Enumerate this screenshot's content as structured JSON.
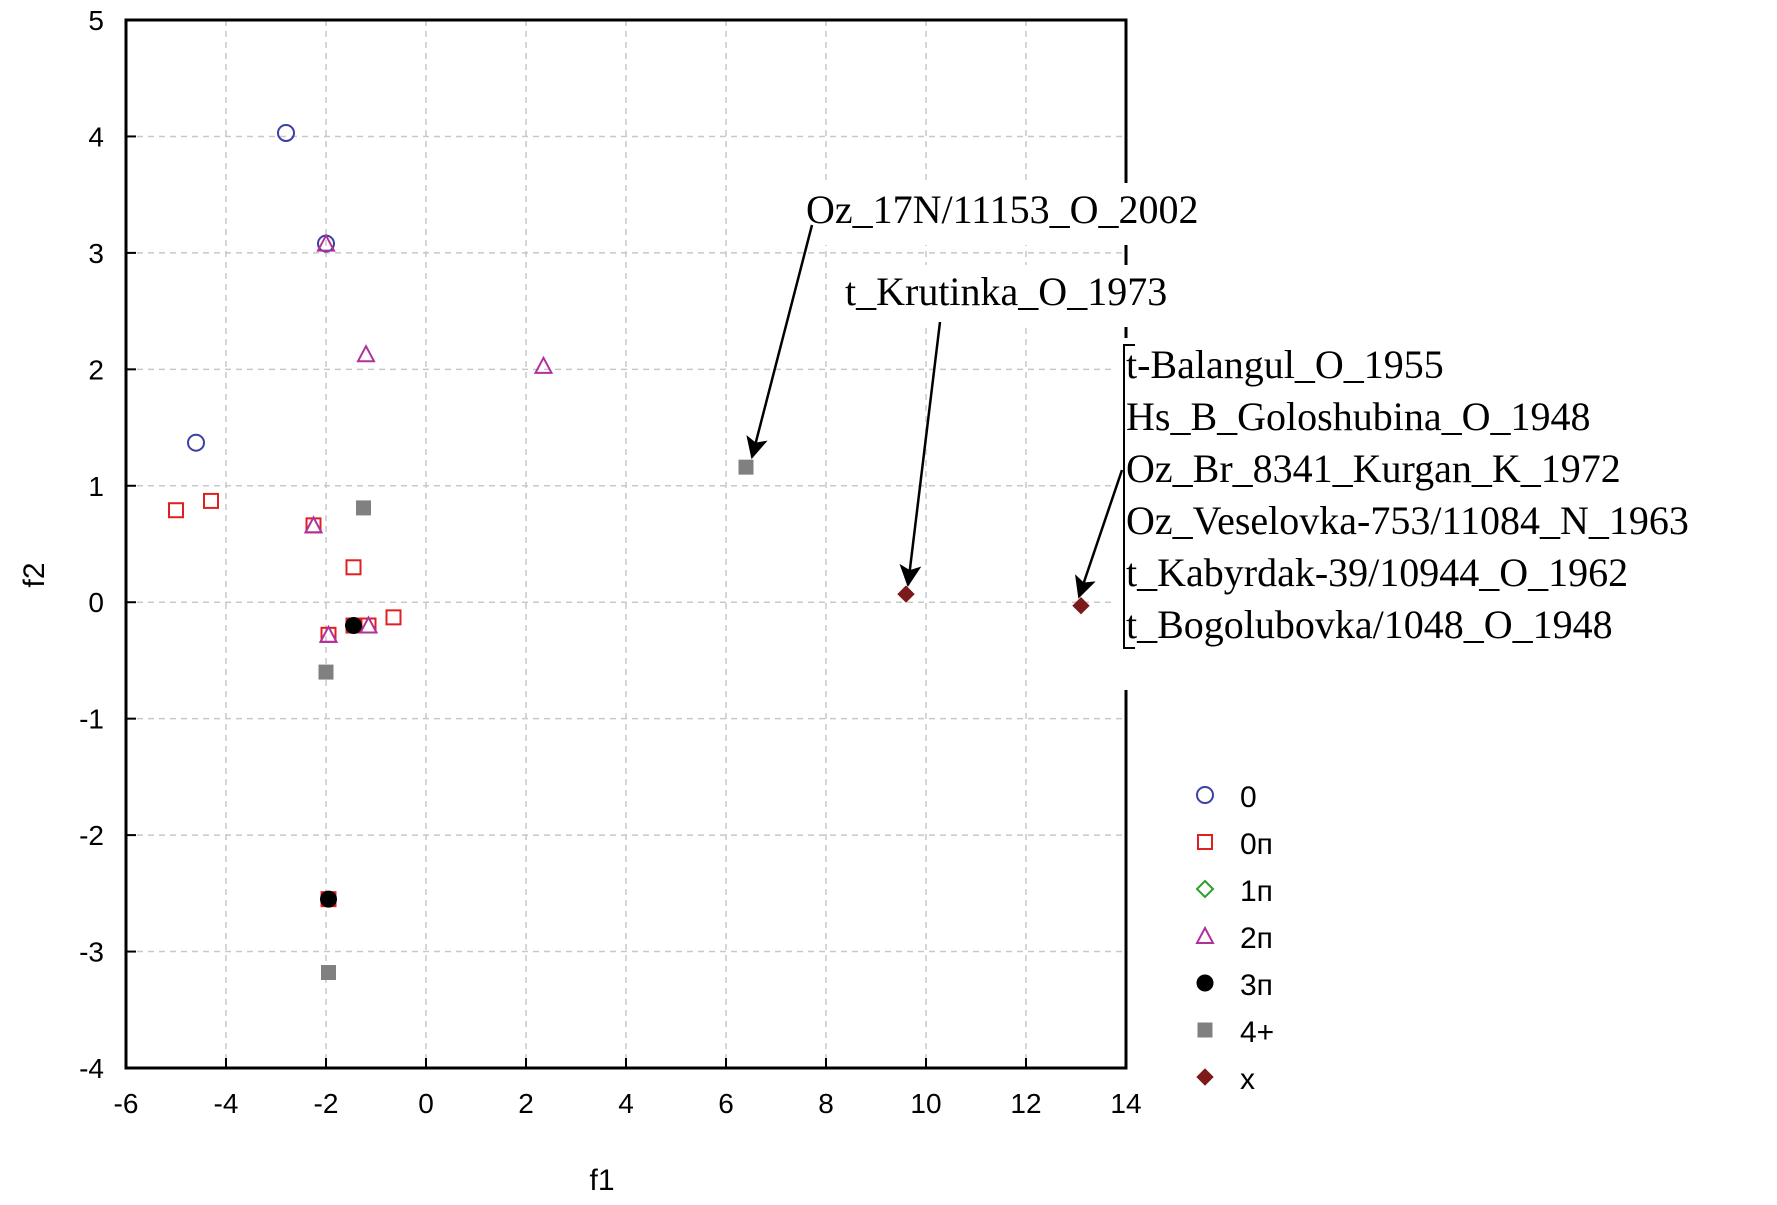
{
  "chart_data": {
    "type": "scatter",
    "xlabel": "f1",
    "ylabel": "f2",
    "xlim": [
      -6,
      14
    ],
    "ylim": [
      -4,
      5
    ],
    "xticks": [
      "-6",
      "-4",
      "-2",
      "0",
      "2",
      "4",
      "6",
      "8",
      "10",
      "12",
      "14"
    ],
    "yticks": [
      "5",
      "4",
      "3",
      "2",
      "1",
      "0",
      "-1",
      "-2",
      "-3",
      "-4"
    ],
    "grid": true,
    "legend_position": "bottom-right",
    "series": [
      {
        "name": "0",
        "marker": "circle-open",
        "color": "#3b3fa6",
        "points": [
          [
            -2.8,
            4.03
          ],
          [
            -2.0,
            3.08
          ],
          [
            -4.6,
            1.37
          ]
        ]
      },
      {
        "name": "0п",
        "marker": "square-open",
        "color": "#e02020",
        "points": [
          [
            -5.0,
            0.79
          ],
          [
            -4.3,
            0.87
          ],
          [
            -2.25,
            0.66
          ],
          [
            -1.45,
            0.3
          ],
          [
            -0.65,
            -0.13
          ],
          [
            -1.95,
            -0.28
          ],
          [
            -1.45,
            -0.2
          ],
          [
            -1.15,
            -0.2
          ],
          [
            -1.95,
            -2.55
          ]
        ]
      },
      {
        "name": "1п",
        "marker": "diamond-open",
        "color": "#2e9e2e",
        "points": []
      },
      {
        "name": "2п",
        "marker": "triangle-open",
        "color": "#b0309c",
        "points": [
          [
            -2.0,
            3.08
          ],
          [
            -1.2,
            2.13
          ],
          [
            2.35,
            2.03
          ],
          [
            -2.25,
            0.66
          ],
          [
            -1.95,
            -0.28
          ],
          [
            -1.15,
            -0.2
          ]
        ]
      },
      {
        "name": "3п",
        "marker": "circle-filled",
        "color": "#000000",
        "points": [
          [
            -1.45,
            -0.2
          ],
          [
            -1.95,
            -2.55
          ]
        ]
      },
      {
        "name": "4+",
        "marker": "square-filled",
        "color": "#808080",
        "points": [
          [
            -1.25,
            0.81
          ],
          [
            -2.0,
            -0.6
          ],
          [
            -1.95,
            -3.18
          ],
          [
            6.4,
            1.16
          ]
        ]
      },
      {
        "name": "x",
        "marker": "diamond-filled",
        "color": "#7a1a1a",
        "points": [
          [
            9.6,
            0.07
          ],
          [
            13.1,
            -0.03
          ]
        ]
      }
    ],
    "annotations": [
      {
        "text": "Oz_17N/11153_O_2002",
        "target": [
          6.4,
          1.16
        ]
      },
      {
        "text": "t_Krutinka_O_1973",
        "target": [
          9.6,
          0.07
        ]
      },
      {
        "lines": [
          "t-Balangul_O_1955",
          "Hs_B_Goloshubina_O_1948",
          "Oz_Br_8341_Kurgan_K_1972",
          "Oz_Veselovka-753/11084_N_1963",
          "t_Kabyrdak-39/10944_O_1962",
          "t_Bogolubovka/1048_O_1948"
        ],
        "target": [
          13.1,
          -0.03
        ]
      }
    ]
  }
}
